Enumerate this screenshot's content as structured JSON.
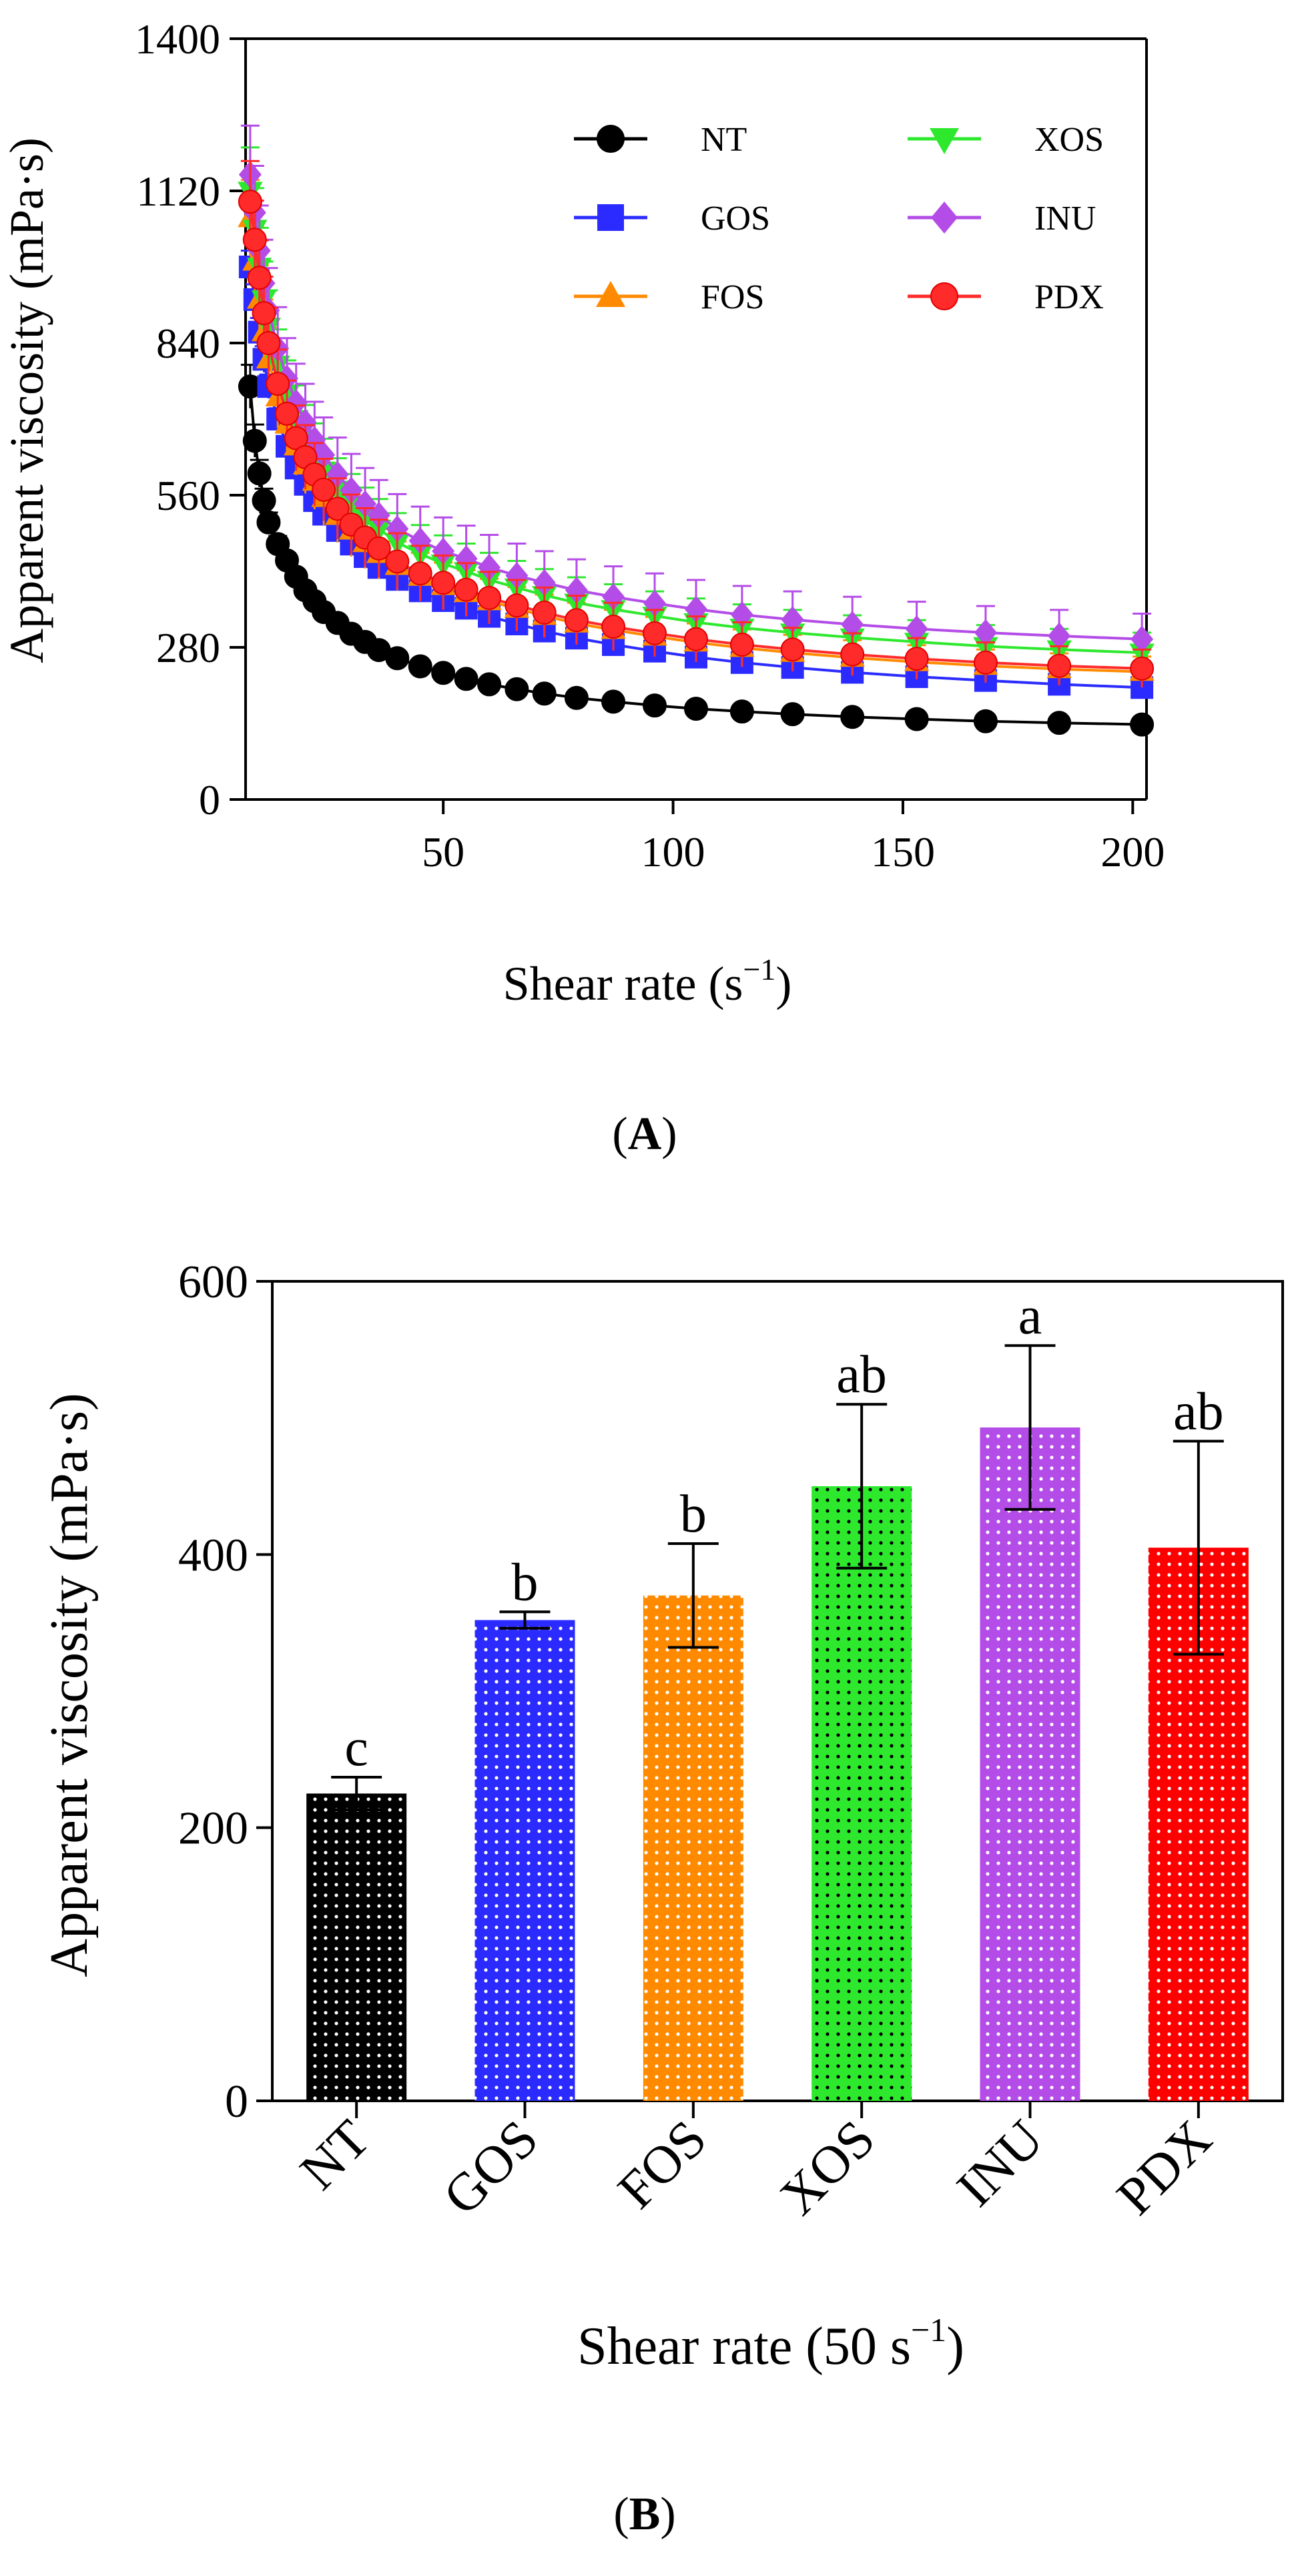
{
  "chart_data": [
    {
      "type": "line",
      "panel_label": "A",
      "title": "",
      "xlabel": "Shear rate (s",
      "xlabel_sup": "−1",
      "xlabel_tail": ")",
      "ylabel": "Apparent viscosity (mPa·s)",
      "xlim": [
        7,
        203
      ],
      "ylim": [
        0,
        1400
      ],
      "xticks": [
        50,
        100,
        150,
        200
      ],
      "yticks": [
        0,
        280,
        560,
        840,
        1120,
        1400
      ],
      "legend_position": "top-right",
      "x": [
        8,
        9,
        10,
        11,
        12,
        14,
        16,
        18,
        20,
        22,
        24,
        27,
        30,
        33,
        36,
        40,
        45,
        50,
        55,
        60,
        66,
        72,
        79,
        87,
        96,
        105,
        115,
        126,
        139,
        153,
        168,
        184,
        202
      ],
      "series": [
        {
          "name": "NT",
          "color": "#000000",
          "marker": "circle",
          "values": [
            760,
            660,
            600,
            550,
            510,
            470,
            440,
            410,
            385,
            365,
            345,
            325,
            305,
            290,
            275,
            260,
            245,
            233,
            222,
            212,
            203,
            195,
            187,
            180,
            173,
            167,
            162,
            157,
            152,
            148,
            144,
            141,
            138
          ],
          "errors": [
            40,
            30,
            25,
            22,
            18,
            15,
            13,
            12,
            11,
            10,
            9,
            8,
            8,
            7,
            7,
            6,
            6,
            6,
            5,
            5,
            5,
            5,
            5,
            4,
            4,
            4,
            4,
            4,
            4,
            4,
            4,
            4,
            4
          ]
        },
        {
          "name": "GOS",
          "color": "#2B2BFF",
          "marker": "square",
          "values": [
            980,
            920,
            860,
            810,
            760,
            700,
            650,
            610,
            580,
            550,
            525,
            495,
            470,
            447,
            427,
            405,
            384,
            366,
            352,
            337,
            323,
            310,
            297,
            285,
            273,
            262,
            252,
            243,
            234,
            226,
            219,
            212,
            206
          ],
          "errors": [
            30,
            28,
            26,
            24,
            22,
            20,
            18,
            17,
            16,
            15,
            14,
            13,
            12,
            12,
            11,
            11,
            10,
            10,
            10,
            9,
            9,
            9,
            9,
            8,
            8,
            8,
            8,
            8,
            8,
            8,
            8,
            8,
            8
          ]
        },
        {
          "name": "FOS",
          "color": "#FF8A00",
          "marker": "triangle-up",
          "values": [
            1070,
            990,
            920,
            860,
            810,
            740,
            690,
            650,
            615,
            585,
            555,
            522,
            495,
            472,
            452,
            430,
            410,
            393,
            380,
            365,
            351,
            338,
            324,
            312,
            300,
            289,
            279,
            270,
            261,
            253,
            246,
            240,
            235
          ],
          "errors": [
            70,
            66,
            63,
            60,
            58,
            56,
            54,
            53,
            52,
            51,
            50,
            49,
            48,
            47,
            46,
            45,
            44,
            43,
            42,
            41,
            40,
            39,
            38,
            37,
            36,
            35,
            34,
            33,
            32,
            31,
            30,
            29,
            28
          ]
        },
        {
          "name": "XOS",
          "color": "#2EE82E",
          "marker": "triangle-down",
          "values": [
            1120,
            1050,
            980,
            920,
            870,
            800,
            745,
            700,
            665,
            632,
            605,
            570,
            542,
            518,
            498,
            473,
            452,
            434,
            420,
            404,
            390,
            376,
            362,
            350,
            338,
            326,
            316,
            307,
            298,
            290,
            282,
            276,
            270
          ],
          "errors": [
            80,
            75,
            72,
            70,
            67,
            65,
            63,
            62,
            61,
            60,
            59,
            58,
            57,
            56,
            55,
            54,
            53,
            52,
            51,
            50,
            49,
            48,
            47,
            46,
            45,
            44,
            43,
            42,
            41,
            40,
            39,
            38,
            37
          ]
        },
        {
          "name": "INU",
          "color": "#B44CE8",
          "marker": "diamond",
          "values": [
            1150,
            1080,
            1010,
            950,
            900,
            830,
            775,
            730,
            694,
            662,
            634,
            598,
            569,
            544,
            523,
            498,
            476,
            457,
            443,
            427,
            412,
            399,
            385,
            373,
            361,
            350,
            340,
            331,
            322,
            314,
            307,
            301,
            295
          ],
          "errors": [
            90,
            86,
            83,
            80,
            78,
            76,
            74,
            72,
            71,
            70,
            69,
            68,
            67,
            66,
            65,
            64,
            63,
            62,
            61,
            60,
            59,
            58,
            57,
            56,
            55,
            54,
            53,
            52,
            51,
            50,
            49,
            48,
            47
          ]
        },
        {
          "name": "PDX",
          "color": "#FF2A2A",
          "marker": "circle",
          "values": [
            1100,
            1030,
            960,
            895,
            840,
            765,
            710,
            665,
            630,
            598,
            570,
            535,
            506,
            482,
            462,
            438,
            416,
            399,
            386,
            371,
            357,
            344,
            330,
            318,
            306,
            295,
            285,
            276,
            267,
            259,
            252,
            246,
            241
          ],
          "errors": [
            75,
            72,
            69,
            67,
            65,
            63,
            61,
            60,
            59,
            58,
            57,
            56,
            55,
            54,
            53,
            52,
            51,
            50,
            49,
            48,
            47,
            46,
            45,
            44,
            43,
            42,
            41,
            40,
            39,
            38,
            37,
            36,
            35
          ]
        }
      ]
    },
    {
      "type": "bar",
      "panel_label": "B",
      "title": "",
      "xlabel": "Shear rate (50 s",
      "xlabel_sup": "−1",
      "xlabel_tail": ")",
      "ylabel": "Apparent viscosity (mPa·s)",
      "ylim": [
        0,
        600
      ],
      "yticks": [
        0,
        200,
        400,
        600
      ],
      "categories": [
        "NT",
        "GOS",
        "FOS",
        "XOS",
        "INU",
        "PDX"
      ],
      "values": [
        225,
        352,
        370,
        450,
        493,
        405
      ],
      "errors": [
        12,
        6,
        38,
        60,
        60,
        78
      ],
      "significance": [
        "c",
        "b",
        "b",
        "ab",
        "a",
        "ab"
      ],
      "colors": [
        "#000000",
        "#2B2BFF",
        "#FF8A00",
        "#2EE82E",
        "#B44CE8",
        "#FF0000"
      ],
      "dot_colors": [
        "#ffffff",
        "#ffffff",
        "#ffffff",
        "#000000",
        "#ffffff",
        "#ffffff"
      ]
    }
  ]
}
